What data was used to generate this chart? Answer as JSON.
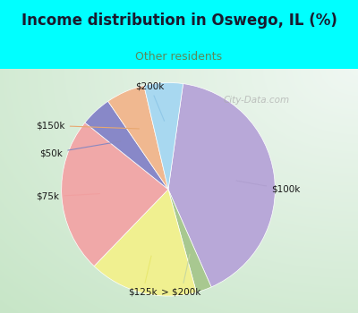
{
  "title": "Income distribution in Oswego, IL (%)",
  "subtitle": "Other residents",
  "title_color": "#1a1a2e",
  "subtitle_color": "#5a8a5a",
  "title_bg": "#00ffff",
  "chart_bg_left": "#c8e8c8",
  "chart_bg_right": "#e8f4f0",
  "border_color": "#00ffff",
  "labels": [
    "$100k",
    "> $200k",
    "$125k",
    "$75k",
    "$50k",
    "$150k",
    "$200k"
  ],
  "values": [
    35,
    2,
    14,
    20,
    4,
    5,
    5
  ],
  "colors": [
    "#b8a8d8",
    "#a8c890",
    "#f0f090",
    "#f0a8a8",
    "#8888c8",
    "#f0b890",
    "#a8d8f0"
  ],
  "watermark": "City-Data.com",
  "startangle": 82
}
